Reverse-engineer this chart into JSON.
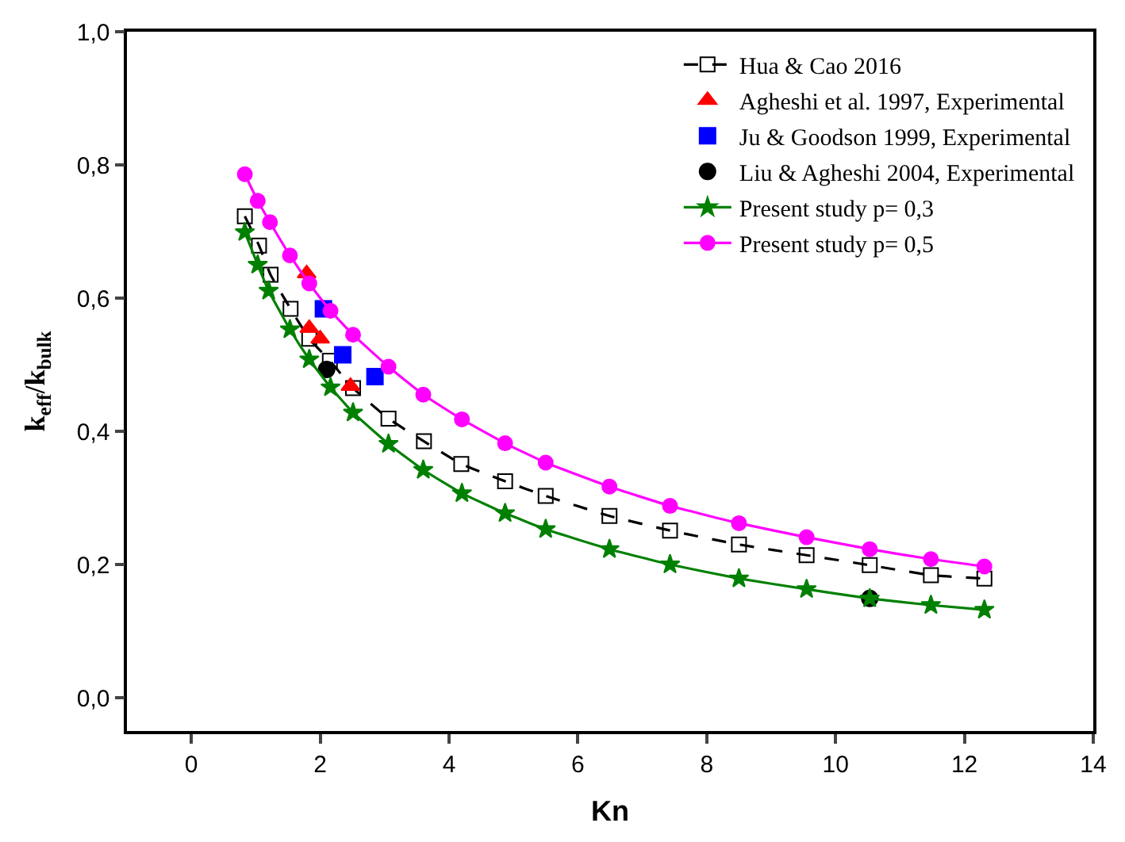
{
  "chart_data": {
    "type": "line",
    "xlabel": "Kn",
    "ylabel": "k$_{eff}$/k$_{bulk}$",
    "xlim": [
      -1,
      14
    ],
    "xticks": [
      0,
      2,
      4,
      6,
      8,
      10,
      12,
      14
    ],
    "ylim": [
      -0.05,
      1.0
    ],
    "yticks": [
      {
        "value": 0,
        "label": "0,0"
      },
      {
        "value": 0.2,
        "label": "0,2"
      },
      {
        "value": 0.4,
        "label": "0,4"
      },
      {
        "value": 0.6,
        "label": "0,6"
      },
      {
        "value": 0.8,
        "label": "0,8"
      },
      {
        "value": 1.0,
        "label": "1,0"
      }
    ],
    "legend": "top right",
    "series": [
      {
        "name": "Hua & Cao 2016",
        "marker": "square",
        "line_style": "dashed",
        "color": "#000000",
        "x": [
          0.83,
          1.05,
          1.23,
          1.54,
          1.83,
          2.15,
          2.51,
          3.06,
          3.61,
          4.19,
          4.87,
          5.5,
          6.49,
          7.43,
          8.5,
          9.55,
          10.53,
          11.48,
          12.31
        ],
        "values": [
          0.723,
          0.679,
          0.635,
          0.584,
          0.539,
          0.506,
          0.465,
          0.419,
          0.385,
          0.351,
          0.325,
          0.303,
          0.273,
          0.251,
          0.23,
          0.214,
          0.199,
          0.184,
          0.179
        ]
      },
      {
        "name": "Agheshi et al. 1997, Experimental",
        "type": "scatter",
        "marker": "triangle",
        "color": "#ff0000",
        "x": [
          1.79,
          1.83,
          2.0,
          2.47
        ],
        "values": [
          0.637,
          0.555,
          0.539,
          0.468
        ]
      },
      {
        "name": "Ju & Goodson 1999, Experimental",
        "type": "scatter",
        "marker": "square",
        "color": "#0000ff",
        "x": [
          2.05,
          2.35,
          2.85
        ],
        "values": [
          0.584,
          0.515,
          0.482
        ]
      },
      {
        "name": "Liu & Agheshi 2004, Experimental",
        "type": "scatter",
        "marker": "circle",
        "color": "#000000",
        "x": [
          2.1,
          10.53
        ],
        "values": [
          0.493,
          0.149
        ]
      },
      {
        "name": "Present study p= 0,3",
        "marker": "star",
        "line_style": "solid",
        "color": "#008000",
        "x": [
          0.83,
          1.03,
          1.2,
          1.53,
          1.83,
          2.16,
          2.51,
          3.06,
          3.6,
          4.2,
          4.87,
          5.5,
          6.49,
          7.43,
          8.5,
          9.55,
          10.53,
          11.48,
          12.31
        ],
        "values": [
          0.699,
          0.65,
          0.611,
          0.553,
          0.508,
          0.466,
          0.428,
          0.381,
          0.342,
          0.307,
          0.277,
          0.253,
          0.223,
          0.2,
          0.179,
          0.163,
          0.149,
          0.139,
          0.132
        ]
      },
      {
        "name": "Present study p= 0,5",
        "marker": "circle",
        "line_style": "solid",
        "color": "#ff00ff",
        "x": [
          0.83,
          1.03,
          1.22,
          1.53,
          1.83,
          2.16,
          2.51,
          3.06,
          3.6,
          4.2,
          4.87,
          5.5,
          6.49,
          7.43,
          8.5,
          9.55,
          10.53,
          11.48,
          12.31
        ],
        "values": [
          0.786,
          0.746,
          0.714,
          0.664,
          0.622,
          0.581,
          0.545,
          0.497,
          0.455,
          0.418,
          0.382,
          0.353,
          0.317,
          0.288,
          0.262,
          0.241,
          0.223,
          0.208,
          0.197
        ]
      }
    ]
  }
}
